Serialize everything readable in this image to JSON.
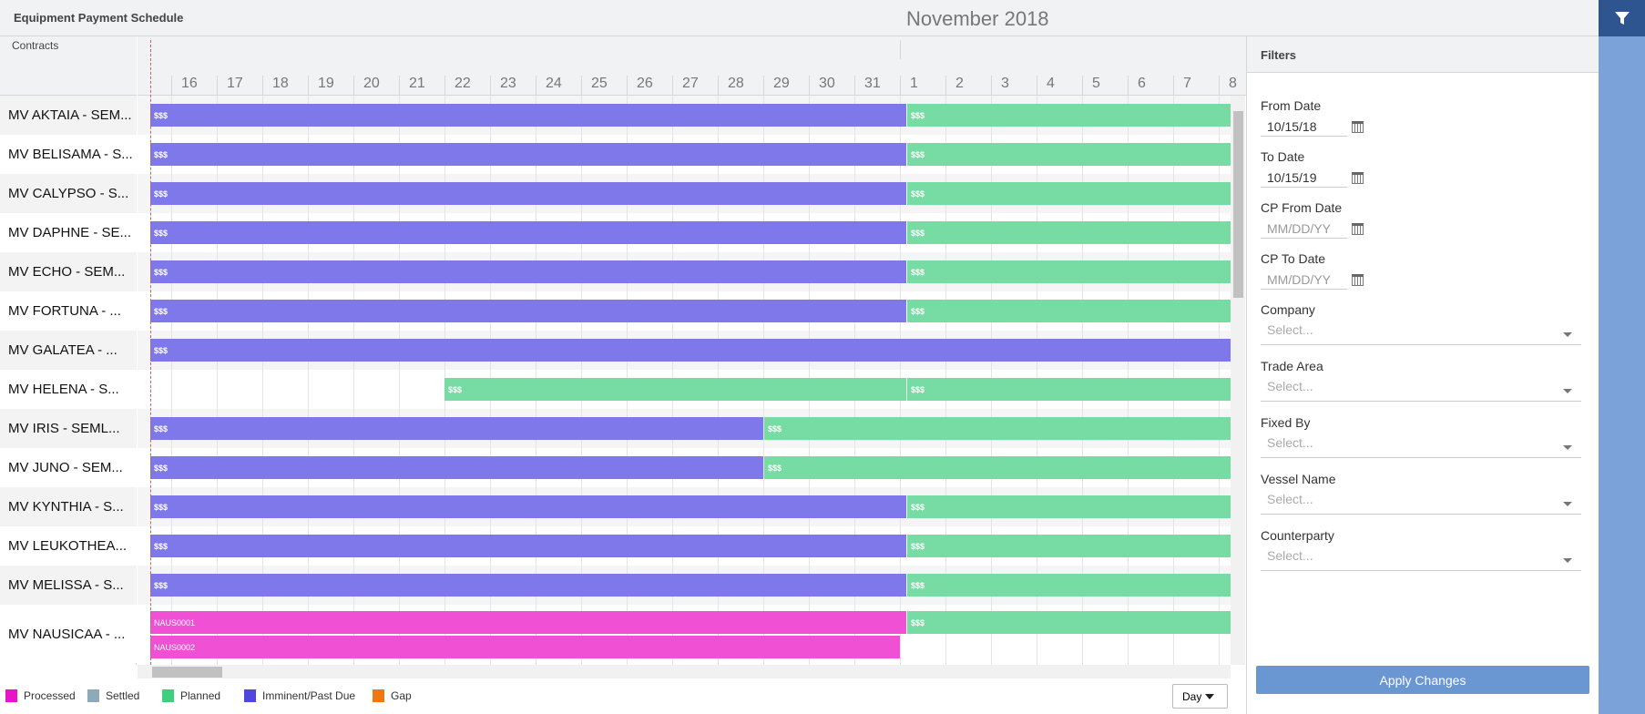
{
  "header": {
    "title": "Equipment Payment Schedule",
    "filter_icon": "filter-icon"
  },
  "gantt": {
    "column_header": "Contracts",
    "month_label": "November 2018",
    "days": [
      "16",
      "17",
      "18",
      "19",
      "20",
      "21",
      "22",
      "23",
      "24",
      "25",
      "26",
      "27",
      "28",
      "29",
      "30",
      "31",
      "1",
      "2",
      "3",
      "4",
      "5",
      "6",
      "7",
      "8"
    ],
    "rows": [
      {
        "label": "MV AKTAIA - SEM...",
        "bars": [
          [
            {
              "status": "imminent",
              "start": "2018-10-15",
              "end": "2018-11-01",
              "text": "$$$"
            },
            {
              "status": "planned",
              "start": "2018-11-01",
              "end": "2018-11-09",
              "text": "$$$"
            }
          ]
        ]
      },
      {
        "label": "MV BELISAMA - S...",
        "bars": [
          [
            {
              "status": "imminent",
              "start": "2018-10-15",
              "end": "2018-11-01",
              "text": "$$$"
            },
            {
              "status": "planned",
              "start": "2018-11-01",
              "end": "2018-11-09",
              "text": "$$$"
            }
          ]
        ]
      },
      {
        "label": "MV CALYPSO - S...",
        "bars": [
          [
            {
              "status": "imminent",
              "start": "2018-10-15",
              "end": "2018-11-01",
              "text": "$$$"
            },
            {
              "status": "planned",
              "start": "2018-11-01",
              "end": "2018-11-09",
              "text": "$$$"
            }
          ]
        ]
      },
      {
        "label": "MV DAPHNE - SE...",
        "bars": [
          [
            {
              "status": "imminent",
              "start": "2018-10-15",
              "end": "2018-11-01",
              "text": "$$$"
            },
            {
              "status": "planned",
              "start": "2018-11-01",
              "end": "2018-11-09",
              "text": "$$$"
            }
          ]
        ]
      },
      {
        "label": "MV ECHO - SEM...",
        "bars": [
          [
            {
              "status": "imminent",
              "start": "2018-10-15",
              "end": "2018-11-01",
              "text": "$$$"
            },
            {
              "status": "planned",
              "start": "2018-11-01",
              "end": "2018-11-09",
              "text": "$$$"
            }
          ]
        ]
      },
      {
        "label": "MV FORTUNA - ...",
        "bars": [
          [
            {
              "status": "imminent",
              "start": "2018-10-15",
              "end": "2018-11-01",
              "text": "$$$"
            },
            {
              "status": "planned",
              "start": "2018-11-01",
              "end": "2018-11-09",
              "text": "$$$"
            }
          ]
        ]
      },
      {
        "label": "MV GALATEA - ...",
        "bars": [
          [
            {
              "status": "imminent",
              "start": "2018-10-15",
              "end": "2018-11-09",
              "text": "$$$"
            }
          ]
        ]
      },
      {
        "label": "MV HELENA - S...",
        "bars": [
          [
            {
              "status": "planned",
              "start": "2018-10-22",
              "end": "2018-11-01",
              "text": "$$$"
            },
            {
              "status": "planned",
              "start": "2018-11-01",
              "end": "2018-11-09",
              "text": "$$$"
            }
          ]
        ]
      },
      {
        "label": "MV IRIS - SEML...",
        "bars": [
          [
            {
              "status": "imminent",
              "start": "2018-10-15",
              "end": "2018-10-29",
              "text": "$$$"
            },
            {
              "status": "planned",
              "start": "2018-10-29",
              "end": "2018-11-09",
              "text": "$$$"
            }
          ]
        ]
      },
      {
        "label": "MV JUNO - SEM...",
        "bars": [
          [
            {
              "status": "imminent",
              "start": "2018-10-15",
              "end": "2018-10-29",
              "text": "$$$"
            },
            {
              "status": "planned",
              "start": "2018-10-29",
              "end": "2018-11-09",
              "text": "$$$"
            }
          ]
        ]
      },
      {
        "label": "MV KYNTHIA - S...",
        "bars": [
          [
            {
              "status": "imminent",
              "start": "2018-10-15",
              "end": "2018-11-01",
              "text": "$$$"
            },
            {
              "status": "planned",
              "start": "2018-11-01",
              "end": "2018-11-09",
              "text": "$$$"
            }
          ]
        ]
      },
      {
        "label": "MV LEUKOTHEA...",
        "bars": [
          [
            {
              "status": "imminent",
              "start": "2018-10-15",
              "end": "2018-11-01",
              "text": "$$$"
            },
            {
              "status": "planned",
              "start": "2018-11-01",
              "end": "2018-11-09",
              "text": "$$$"
            }
          ]
        ]
      },
      {
        "label": "MV MELISSA - S...",
        "bars": [
          [
            {
              "status": "imminent",
              "start": "2018-10-15",
              "end": "2018-11-01",
              "text": "$$$"
            },
            {
              "status": "planned",
              "start": "2018-11-01",
              "end": "2018-11-09",
              "text": "$$$"
            }
          ]
        ]
      },
      {
        "label": "MV NAUSICAA - ...",
        "bars": [
          [
            {
              "status": "processed",
              "start": "2018-10-15",
              "end": "2018-11-01",
              "text": "NAUS0001"
            },
            {
              "status": "planned",
              "start": "2018-11-01",
              "end": "2018-11-09",
              "text": "$$$"
            }
          ],
          [
            {
              "status": "processed",
              "start": "2018-10-15",
              "end": "2018-11-01",
              "text": "NAUS0002"
            }
          ]
        ]
      }
    ]
  },
  "bar_colors": {
    "imminent": "#7e78ea",
    "planned": "#77dba4",
    "processed": "#f050d4"
  },
  "legend": [
    {
      "label": "Processed",
      "color": "#e815c8"
    },
    {
      "label": "Settled",
      "color": "#8eaab8"
    },
    {
      "label": "Planned",
      "color": "#3ecf7f"
    },
    {
      "label": "Imminent/Past Due",
      "color": "#4f46e0"
    },
    {
      "label": "Gap",
      "color": "#f07812"
    }
  ],
  "view_select": {
    "value": "Day"
  },
  "filters": {
    "title": "Filters",
    "from_date": {
      "label": "From Date",
      "value": "10/15/18"
    },
    "to_date": {
      "label": "To Date",
      "value": "10/15/19"
    },
    "cp_from_date": {
      "label": "CP From Date",
      "placeholder": "MM/DD/YY"
    },
    "cp_to_date": {
      "label": "CP To Date",
      "placeholder": "MM/DD/YY"
    },
    "selects": [
      {
        "label": "Company",
        "placeholder": "Select..."
      },
      {
        "label": "Trade Area",
        "placeholder": "Select..."
      },
      {
        "label": "Fixed By",
        "placeholder": "Select..."
      },
      {
        "label": "Vessel Name",
        "placeholder": "Select..."
      },
      {
        "label": "Counterparty",
        "placeholder": "Select..."
      }
    ],
    "apply_label": "Apply Changes"
  }
}
